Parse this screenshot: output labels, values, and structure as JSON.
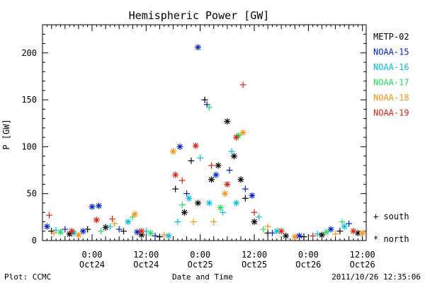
{
  "chart_data": {
    "type": "scatter",
    "title": "Hemispheric Power [GW]",
    "xlabel": "Date and Time",
    "ylabel": "P [GW]",
    "ylim": [
      0,
      230
    ],
    "yticks": [
      0,
      50,
      100,
      150,
      200
    ],
    "xlim": [
      "2011-10-23T13:00",
      "2011-10-26T12:50"
    ],
    "xticks": [
      {
        "x": "2011-10-24T00:00",
        "line1": "0:00",
        "line2": "Oct24"
      },
      {
        "x": "2011-10-24T12:00",
        "line1": "12:00",
        "line2": "Oct24"
      },
      {
        "x": "2011-10-25T00:00",
        "line1": "0:00",
        "line2": "Oct25"
      },
      {
        "x": "2011-10-25T12:00",
        "line1": "12:00",
        "line2": "Oct25"
      },
      {
        "x": "2011-10-26T00:00",
        "line1": "0:00",
        "line2": "Oct26"
      },
      {
        "x": "2011-10-26T12:00",
        "line1": "12:00",
        "line2": "Oct26"
      }
    ],
    "grid": false,
    "legend_position": "right",
    "marker_legend": [
      {
        "marker": "+",
        "label": "south"
      },
      {
        "marker": "*",
        "label": "north"
      }
    ],
    "series": [
      {
        "name": "METP-02",
        "color": "#000000",
        "points": [
          {
            "x": "2011-10-23T15:00",
            "y": 10,
            "m": "+"
          },
          {
            "x": "2011-10-23T19:00",
            "y": 7,
            "m": "*"
          },
          {
            "x": "2011-10-23T23:00",
            "y": 12,
            "m": "+"
          },
          {
            "x": "2011-10-24T03:00",
            "y": 14,
            "m": "*"
          },
          {
            "x": "2011-10-24T07:00",
            "y": 10,
            "m": "+"
          },
          {
            "x": "2011-10-24T11:00",
            "y": 6,
            "m": "*"
          },
          {
            "x": "2011-10-24T15:00",
            "y": 4,
            "m": "+"
          },
          {
            "x": "2011-10-24T18:30",
            "y": 55,
            "m": "+"
          },
          {
            "x": "2011-10-24T20:30",
            "y": 30,
            "m": "*"
          },
          {
            "x": "2011-10-24T22:00",
            "y": 85,
            "m": "+"
          },
          {
            "x": "2011-10-24T23:30",
            "y": 40,
            "m": "*"
          },
          {
            "x": "2011-10-25T01:00",
            "y": 150,
            "m": "+"
          },
          {
            "x": "2011-10-25T02:30",
            "y": 65,
            "m": "*"
          },
          {
            "x": "2011-10-25T04:00",
            "y": 80,
            "m": "*"
          },
          {
            "x": "2011-10-25T06:00",
            "y": 127,
            "m": "*"
          },
          {
            "x": "2011-10-25T07:30",
            "y": 90,
            "m": "*"
          },
          {
            "x": "2011-10-25T09:00",
            "y": 65,
            "m": "*"
          },
          {
            "x": "2011-10-25T10:00",
            "y": 45,
            "m": "+"
          },
          {
            "x": "2011-10-25T12:00",
            "y": 20,
            "m": "*"
          },
          {
            "x": "2011-10-25T15:00",
            "y": 8,
            "m": "+"
          },
          {
            "x": "2011-10-25T19:00",
            "y": 5,
            "m": "*"
          },
          {
            "x": "2011-10-25T23:00",
            "y": 4,
            "m": "+"
          },
          {
            "x": "2011-10-26T03:00",
            "y": 6,
            "m": "*"
          },
          {
            "x": "2011-10-26T07:00",
            "y": 10,
            "m": "+"
          },
          {
            "x": "2011-10-26T11:00",
            "y": 8,
            "m": "*"
          }
        ]
      },
      {
        "name": "NOAA-15",
        "color": "#0020d0",
        "points": [
          {
            "x": "2011-10-23T14:00",
            "y": 15,
            "m": "*"
          },
          {
            "x": "2011-10-23T18:00",
            "y": 12,
            "m": "+"
          },
          {
            "x": "2011-10-23T22:00",
            "y": 10,
            "m": "*"
          },
          {
            "x": "2011-10-24T00:00",
            "y": 36,
            "m": "*"
          },
          {
            "x": "2011-10-24T01:30",
            "y": 37,
            "m": "*"
          },
          {
            "x": "2011-10-24T06:00",
            "y": 12,
            "m": "+"
          },
          {
            "x": "2011-10-24T10:00",
            "y": 9,
            "m": "*"
          },
          {
            "x": "2011-10-24T14:00",
            "y": 5,
            "m": "+"
          },
          {
            "x": "2011-10-24T19:30",
            "y": 100,
            "m": "*"
          },
          {
            "x": "2011-10-24T21:00",
            "y": 50,
            "m": "+"
          },
          {
            "x": "2011-10-24T23:30",
            "y": 206,
            "m": "*"
          },
          {
            "x": "2011-10-25T01:30",
            "y": 145,
            "m": "+"
          },
          {
            "x": "2011-10-25T03:30",
            "y": 70,
            "m": "*"
          },
          {
            "x": "2011-10-25T06:30",
            "y": 75,
            "m": "+"
          },
          {
            "x": "2011-10-25T10:00",
            "y": 55,
            "m": "+"
          },
          {
            "x": "2011-10-25T11:30",
            "y": 48,
            "m": "*"
          },
          {
            "x": "2011-10-25T16:00",
            "y": 8,
            "m": "+"
          },
          {
            "x": "2011-10-25T22:00",
            "y": 5,
            "m": "*"
          },
          {
            "x": "2011-10-26T05:00",
            "y": 12,
            "m": "*"
          },
          {
            "x": "2011-10-26T09:00",
            "y": 18,
            "m": "+"
          }
        ]
      },
      {
        "name": "NOAA-16",
        "color": "#00c0e0",
        "points": [
          {
            "x": "2011-10-23T16:00",
            "y": 11,
            "m": "+"
          },
          {
            "x": "2011-10-23T20:00",
            "y": 8,
            "m": "*"
          },
          {
            "x": "2011-10-24T04:00",
            "y": 15,
            "m": "+"
          },
          {
            "x": "2011-10-24T08:00",
            "y": 20,
            "m": "*"
          },
          {
            "x": "2011-10-24T12:00",
            "y": 10,
            "m": "+"
          },
          {
            "x": "2011-10-24T17:00",
            "y": 5,
            "m": "*"
          },
          {
            "x": "2011-10-24T19:00",
            "y": 20,
            "m": "+"
          },
          {
            "x": "2011-10-24T21:30",
            "y": 45,
            "m": "*"
          },
          {
            "x": "2011-10-25T00:00",
            "y": 88,
            "m": "+"
          },
          {
            "x": "2011-10-25T02:00",
            "y": 40,
            "m": "*"
          },
          {
            "x": "2011-10-25T05:00",
            "y": 30,
            "m": "+"
          },
          {
            "x": "2011-10-25T07:00",
            "y": 95,
            "m": "+"
          },
          {
            "x": "2011-10-25T08:00",
            "y": 40,
            "m": "*"
          },
          {
            "x": "2011-10-25T13:00",
            "y": 25,
            "m": "+"
          },
          {
            "x": "2011-10-25T17:00",
            "y": 10,
            "m": "*"
          },
          {
            "x": "2011-10-26T02:00",
            "y": 7,
            "m": "+"
          },
          {
            "x": "2011-10-26T08:00",
            "y": 15,
            "m": "*"
          }
        ]
      },
      {
        "name": "NOAA-17",
        "color": "#20e060",
        "points": [
          {
            "x": "2011-10-23T17:00",
            "y": 9,
            "m": "*"
          },
          {
            "x": "2011-10-24T02:00",
            "y": 10,
            "m": "+"
          },
          {
            "x": "2011-10-24T09:00",
            "y": 25,
            "m": "+"
          },
          {
            "x": "2011-10-24T13:00",
            "y": 8,
            "m": "*"
          },
          {
            "x": "2011-10-24T20:00",
            "y": 38,
            "m": "+"
          },
          {
            "x": "2011-10-25T02:00",
            "y": 142,
            "m": "+"
          },
          {
            "x": "2011-10-25T04:30",
            "y": 35,
            "m": "*"
          },
          {
            "x": "2011-10-25T08:30",
            "y": 112,
            "m": "*"
          },
          {
            "x": "2011-10-25T14:00",
            "y": 12,
            "m": "+"
          },
          {
            "x": "2011-10-26T04:00",
            "y": 9,
            "m": "*"
          },
          {
            "x": "2011-10-26T07:30",
            "y": 20,
            "m": "+"
          }
        ]
      },
      {
        "name": "NOAA-18",
        "color": "#ff9010",
        "points": [
          {
            "x": "2011-10-23T15:30",
            "y": 8,
            "m": "+"
          },
          {
            "x": "2011-10-23T21:00",
            "y": 6,
            "m": "*"
          },
          {
            "x": "2011-10-24T05:00",
            "y": 18,
            "m": "+"
          },
          {
            "x": "2011-10-24T09:30",
            "y": 28,
            "m": "*"
          },
          {
            "x": "2011-10-24T16:00",
            "y": 6,
            "m": "+"
          },
          {
            "x": "2011-10-24T18:00",
            "y": 95,
            "m": "*"
          },
          {
            "x": "2011-10-24T22:30",
            "y": 20,
            "m": "+"
          },
          {
            "x": "2011-10-25T03:00",
            "y": 20,
            "m": "+"
          },
          {
            "x": "2011-10-25T05:30",
            "y": 50,
            "m": "*"
          },
          {
            "x": "2011-10-25T09:30",
            "y": 115,
            "m": "*"
          },
          {
            "x": "2011-10-25T15:00",
            "y": 15,
            "m": "+"
          },
          {
            "x": "2011-10-25T21:00",
            "y": 4,
            "m": "*"
          },
          {
            "x": "2011-10-26T06:00",
            "y": 7,
            "m": "+"
          },
          {
            "x": "2011-10-26T12:00",
            "y": 8,
            "m": "*"
          }
        ]
      },
      {
        "name": "NOAA-19",
        "color": "#e02010",
        "points": [
          {
            "x": "2011-10-23T14:30",
            "y": 27,
            "m": "+"
          },
          {
            "x": "2011-10-23T19:30",
            "y": 10,
            "m": "*"
          },
          {
            "x": "2011-10-24T01:00",
            "y": 22,
            "m": "*"
          },
          {
            "x": "2011-10-24T04:30",
            "y": 23,
            "m": "+"
          },
          {
            "x": "2011-10-24T11:00",
            "y": 10,
            "m": "*"
          },
          {
            "x": "2011-10-24T18:30",
            "y": 70,
            "m": "*"
          },
          {
            "x": "2011-10-24T20:00",
            "y": 64,
            "m": "+"
          },
          {
            "x": "2011-10-24T23:00",
            "y": 101,
            "m": "*"
          },
          {
            "x": "2011-10-25T02:30",
            "y": 80,
            "m": "+"
          },
          {
            "x": "2011-10-25T06:00",
            "y": 60,
            "m": "*"
          },
          {
            "x": "2011-10-25T08:00",
            "y": 110,
            "m": "*"
          },
          {
            "x": "2011-10-25T09:30",
            "y": 166,
            "m": "+"
          },
          {
            "x": "2011-10-25T12:00",
            "y": 30,
            "m": "+"
          },
          {
            "x": "2011-10-25T18:00",
            "y": 10,
            "m": "*"
          },
          {
            "x": "2011-10-26T01:00",
            "y": 5,
            "m": "+"
          },
          {
            "x": "2011-10-26T10:00",
            "y": 10,
            "m": "*"
          }
        ]
      }
    ]
  },
  "footer": {
    "left": "Plot: CCMC",
    "center": "Date and Time",
    "right": "2011/10/26 12:35:06"
  },
  "legend_markers": {
    "south_symbol": "+ south",
    "north_symbol": "* north"
  }
}
